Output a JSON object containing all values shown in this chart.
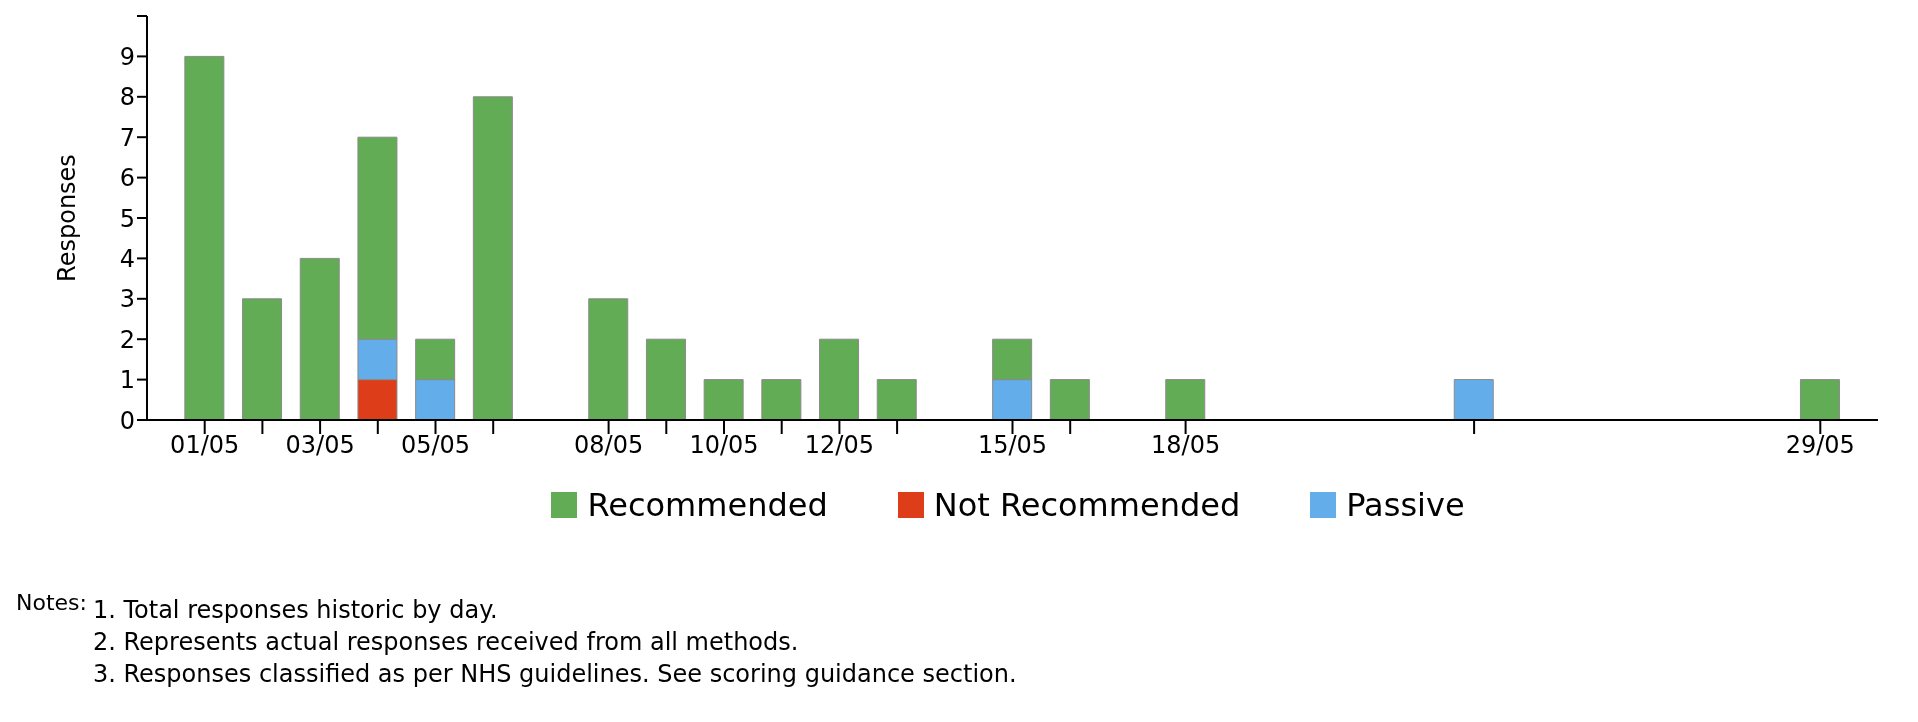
{
  "chart_data": {
    "type": "bar",
    "stacked": true,
    "ylabel": "Responses",
    "x": [
      "--05-01",
      "--05-02",
      "--05-03",
      "--05-04",
      "--05-05",
      "--05-06",
      "--05-08",
      "--05-09",
      "--05-10",
      "--05-11",
      "--05-12",
      "--05-13",
      "--05-15",
      "--05-16",
      "--05-18",
      "--05-23",
      "--05-29"
    ],
    "series": [
      {
        "name": "Not Recommended",
        "color": "#dd3d18",
        "values": [
          null,
          null,
          null,
          1,
          null,
          null,
          null,
          null,
          null,
          null,
          null,
          null,
          null,
          null,
          null,
          null,
          null
        ]
      },
      {
        "name": "Passive",
        "color": "#63aeea",
        "values": [
          null,
          null,
          null,
          1,
          1,
          null,
          null,
          null,
          null,
          null,
          null,
          null,
          1,
          null,
          null,
          1,
          null
        ]
      },
      {
        "name": "Recommended",
        "color": "#62ac55",
        "values": [
          9,
          3,
          4,
          5,
          1,
          8,
          3,
          2,
          1,
          1,
          2,
          1,
          1,
          1,
          1,
          null,
          1
        ]
      }
    ],
    "xlim": [
      "--04-30",
      "--05-30"
    ],
    "xticks": [
      {
        "value": "--05-01",
        "label": "01/05"
      },
      {
        "value": "--05-02",
        "label": null
      },
      {
        "value": "--05-03",
        "label": "03/05"
      },
      {
        "value": "--05-04",
        "label": null
      },
      {
        "value": "--05-05",
        "label": "05/05"
      },
      {
        "value": "--05-06",
        "label": null
      },
      {
        "value": "--05-08",
        "label": "08/05"
      },
      {
        "value": "--05-09",
        "label": null
      },
      {
        "value": "--05-10",
        "label": "10/05"
      },
      {
        "value": "--05-11",
        "label": null
      },
      {
        "value": "--05-12",
        "label": "12/05"
      },
      {
        "value": "--05-13",
        "label": null
      },
      {
        "value": "--05-15",
        "label": "15/05"
      },
      {
        "value": "--05-16",
        "label": null
      },
      {
        "value": "--05-18",
        "label": "18/05"
      },
      {
        "value": "--05-23",
        "label": null
      },
      {
        "value": "--05-29",
        "label": "29/05"
      }
    ],
    "ylim": [
      0,
      10
    ],
    "yticks": [
      0,
      1,
      2,
      3,
      4,
      5,
      6,
      7,
      8,
      9,
      {
        "value": 10,
        "label": null
      }
    ],
    "legend": "bottom",
    "grid": false,
    "annotations": [
      "Notes:",
      "1.  Total responses historic by day.",
      "2.  Represents actual responses received from all methods.",
      "3.  Responses classified as per NHS guidelines. See scoring guidance section."
    ]
  }
}
